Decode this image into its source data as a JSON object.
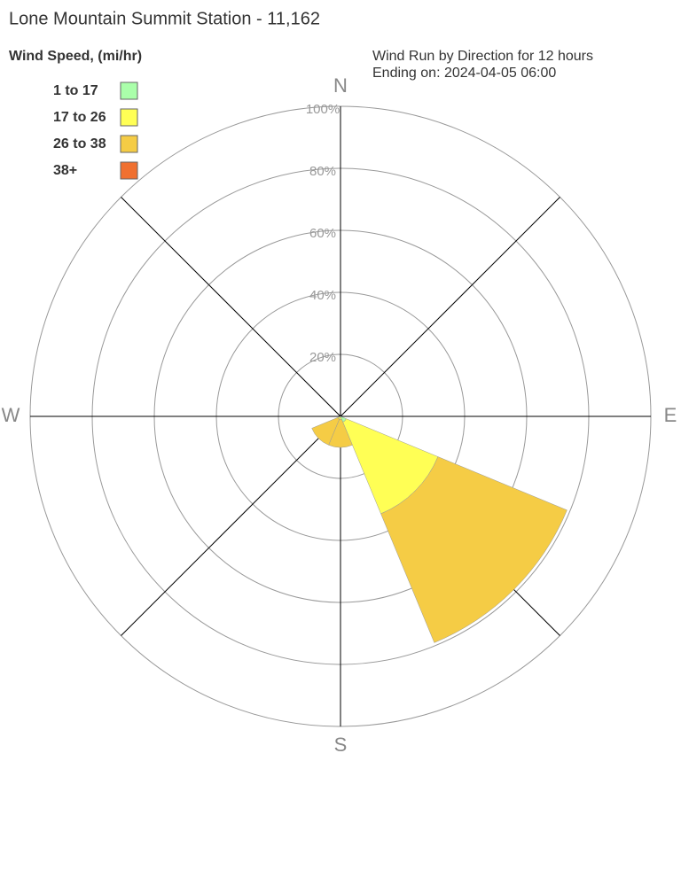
{
  "chart_data": {
    "type": "windrose",
    "title": "Lone Mountain Summit Station - 11,162",
    "legend_title": "Wind Speed, (mi/hr)",
    "subtitle": "Wind Run by Direction for 12 hours",
    "subtitle2": "Ending on: 2024-04-05 06:00",
    "categories": [
      "N",
      null,
      "E",
      null,
      "S",
      null,
      "W",
      null
    ],
    "rlim": [
      0,
      100
    ],
    "rticks": [
      {
        "value": 20,
        "label": "20%"
      },
      {
        "value": 40,
        "label": "40%"
      },
      {
        "value": 60,
        "label": "60%"
      },
      {
        "value": 80,
        "label": "80%"
      },
      {
        "value": 100,
        "label": "100%"
      }
    ],
    "series": [
      {
        "name": "1 to 17",
        "color": "#aaffaa",
        "values": [
          0,
          0,
          0,
          2,
          0,
          0,
          0,
          0
        ]
      },
      {
        "name": "17 to 26",
        "color": "#ffff55",
        "values": [
          0,
          0,
          0,
          32,
          1,
          1,
          0,
          0
        ]
      },
      {
        "name": "26 to 38",
        "color": "#f5cc45",
        "values": [
          0,
          0,
          0,
          45,
          9,
          9,
          0,
          0
        ]
      },
      {
        "name": "38+",
        "color": "#f07030",
        "values": [
          0,
          0,
          0,
          0,
          0,
          0,
          0,
          0
        ]
      }
    ]
  }
}
